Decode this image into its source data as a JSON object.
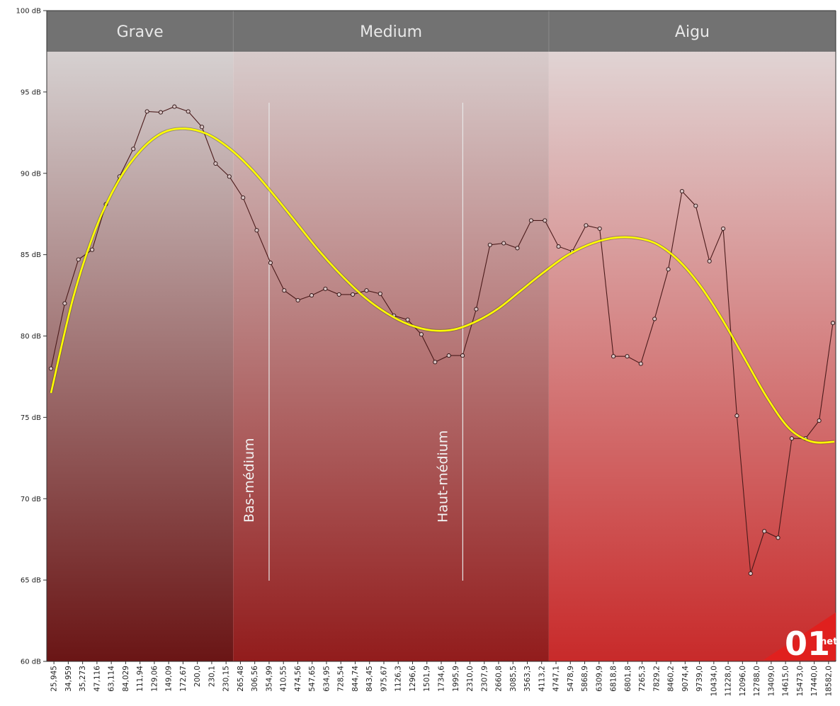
{
  "chart_data": {
    "type": "line",
    "title": "",
    "xlabel": "",
    "ylabel": "",
    "ylim": [
      60,
      100
    ],
    "y_ticks": [
      60,
      65,
      70,
      75,
      80,
      85,
      90,
      95,
      100
    ],
    "y_tick_suffix": " dB",
    "grid": false,
    "x_tick_labels": [
      "25,945",
      "34,959",
      "35,273",
      "47,116",
      "63,114",
      "84,029",
      "111,94",
      "129,06",
      "149,09",
      "172,67",
      "200,0",
      "230,1",
      "230,15",
      "265,48",
      "306,56",
      "354,99",
      "410,55",
      "474,56",
      "547,65",
      "634,95",
      "728,54",
      "844,74",
      "843,45",
      "975,67",
      "1126,3",
      "1296,6",
      "1501,9",
      "1734,6",
      "1995,9",
      "2310,0",
      "2307,9",
      "2660,8",
      "3085,5",
      "3563,3",
      "4113,2",
      "4747,1",
      "5478,9",
      "5868,9",
      "6309,9",
      "6818,8",
      "6801,8",
      "7265,3",
      "7829,2",
      "8460,2",
      "9074,4",
      "9739,0",
      "10434,0",
      "11228,0",
      "12096,0",
      "12788,0",
      "13409,0",
      "14615,0",
      "15473,0",
      "17440,0",
      "18582,0"
    ],
    "regions": [
      {
        "name": "Grave",
        "from_index": 0,
        "to_index": 12.5,
        "color_top": "#dddddd",
        "color_bottom": "#6a1515"
      },
      {
        "name": "Medium",
        "from_index": 12.5,
        "to_index": 34.5,
        "color_top": "#dcd7d7",
        "color_bottom": "#921c1c"
      },
      {
        "name": "Aigu",
        "from_index": 34.5,
        "to_index": 54.5,
        "color_top": "#e2dfdf",
        "color_bottom": "#c82a2a"
      }
    ],
    "subregion_labels": [
      {
        "text": "Bas-médium",
        "at_index": 15
      },
      {
        "text": "Haut-médium",
        "at_index": 28.5
      }
    ],
    "series": [
      {
        "type": "step-points",
        "color": "#4a1a1a",
        "values": [
          78.0,
          82.0,
          84.7,
          85.3,
          88.1,
          89.8,
          91.5,
          93.8,
          93.75,
          94.1,
          93.8,
          92.85,
          90.6,
          89.8,
          88.5,
          86.5,
          84.5,
          82.8,
          82.2,
          82.5,
          82.9,
          82.55,
          82.55,
          82.8,
          82.6,
          81.25,
          81.0,
          80.1,
          78.4,
          78.8,
          78.8,
          81.65,
          85.6,
          85.7,
          85.4,
          87.1,
          87.1,
          85.5,
          85.2,
          86.8,
          86.6,
          78.75,
          78.75,
          78.3,
          81.05,
          84.1,
          88.9,
          88.0,
          84.6,
          86.6,
          75.1,
          65.4,
          68.0,
          67.6,
          73.7,
          73.7,
          74.8,
          80.8
        ]
      },
      {
        "type": "smooth",
        "color": "#ffff00",
        "values": [
          76.5,
          82.4,
          86.6,
          89.5,
          91.4,
          92.5,
          92.75,
          92.4,
          91.5,
          90.2,
          88.6,
          86.9,
          85.2,
          83.7,
          82.4,
          81.4,
          80.7,
          80.35,
          80.4,
          80.9,
          81.7,
          82.8,
          83.9,
          84.9,
          85.6,
          86.0,
          86.05,
          85.7,
          84.7,
          83.1,
          81.0,
          78.6,
          76.2,
          74.3,
          73.5,
          73.5
        ]
      }
    ]
  },
  "logo": {
    "main": "01",
    "suffix": "net"
  }
}
